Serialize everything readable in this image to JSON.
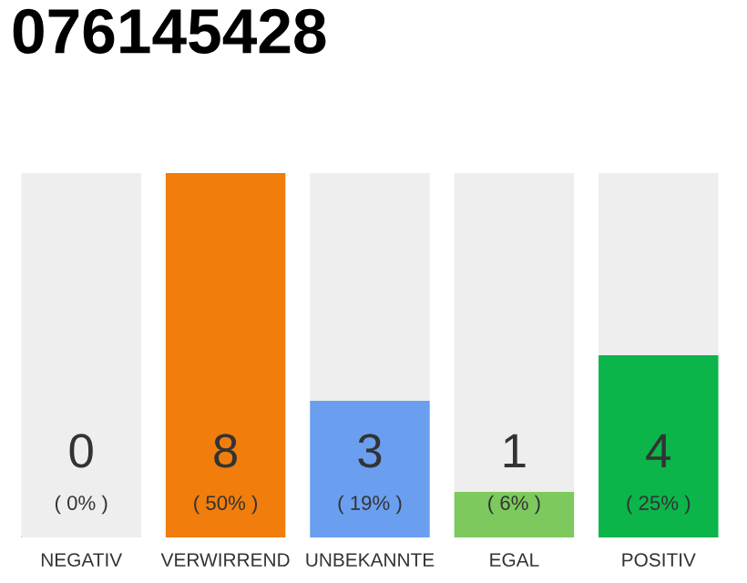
{
  "chart_data": {
    "type": "bar",
    "title": "076145428",
    "stacked": true,
    "categories": [
      "NEGATIV",
      "VERWIRREND",
      "UNBEKANNTE",
      "EGAL",
      "POSITIV"
    ],
    "series": [
      {
        "colors": [
          "#555555",
          "#f07d0c",
          "#6a9ff0",
          "#7dc95e",
          "#0bb54a"
        ],
        "values": [
          0,
          8,
          3,
          1,
          4
        ],
        "value_labels": [
          "0\n( 0% )",
          "8\n( 50% )",
          "3\n( 19% )",
          "1\n( 6% )",
          "4\n( 25% )"
        ]
      },
      {
        "color": "#eeeeee",
        "values": [
          8,
          0,
          5,
          7,
          4
        ]
      }
    ],
    "ylim": [
      0,
      8
    ],
    "tick_labels": "x",
    "legend": false
  }
}
